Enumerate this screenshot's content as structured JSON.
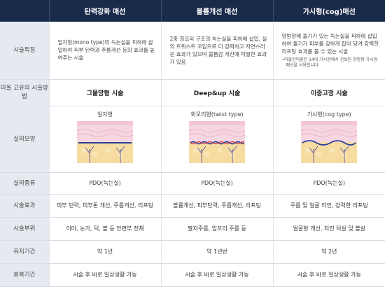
{
  "columns": [
    "",
    "탄력강화 매선",
    "볼륨개선 매선",
    "가시형(cog)매선"
  ],
  "rows": {
    "features": {
      "label": "시술특징",
      "cells": [
        "일자형(mono type)의 녹는실을 피하에 삽입하여 피부 탄력과 주름개선 등의 효과를 높여주는 시술",
        "2중 회오리 구조의 녹는실을 피하에 삽입, 실의 트위스트 꼬임으로 더 강력하고 자연스러운 효과가 있으며 볼륨감 개선에 탁월한 효과가 있음",
        "양방향에 돌기가 있는 녹는실을 피하에 삽입하여 돌기가 피부를 강하게 잡아 당겨 강력한 리프팅 효과를 볼 수 있는 시술"
      ],
      "note": "•미올한의원은 14대 가시형에서 진보된 양방향 가시형 매선을 사용합니다."
    },
    "method": {
      "label": "미올 고유의 시술방법",
      "cells": [
        "그물망형 시술",
        "Deep&up 시술",
        "이중고정 시술"
      ]
    },
    "shape": {
      "label": "실의모양",
      "cells": [
        "일자형",
        "회오리형(twist type)",
        "가시형(cog type)"
      ]
    },
    "thread_type": {
      "label": "실의종류",
      "cells": [
        "PDO(녹는실)",
        "PDO(녹는실)",
        "PDO(녹는실)"
      ]
    },
    "effect": {
      "label": "시술효과",
      "cells": [
        "피부 탄력, 피부톤 개선, 주름개선, 리프팅",
        "볼륨개선, 피부탄력, 주름개선, 리프팅",
        "주름 및 얼굴 라인, 강력한 리프팅"
      ]
    },
    "area": {
      "label": "시술부위",
      "cells": [
        "이마, 눈가, 턱, 볼 등 안면부 전체",
        "팔자주름, 입꼬리 주름 등",
        "얼굴형 개선, 처진 턱살 및 볼살"
      ]
    },
    "duration": {
      "label": "유지기간",
      "cells": [
        "약 1년",
        "약 1년반",
        "약 2년"
      ]
    },
    "recovery": {
      "label": "회복기간",
      "cells": [
        "시술 후 바로 일상생활 가능",
        "시술 후 바로 일상생활 가능",
        "시술 후 바로 일상생활 가능"
      ]
    }
  },
  "colors": {
    "header_bg": "#1a2a4a",
    "label_bg": "#e6eaf0",
    "thread_blue": "#2c3f9c",
    "skin_pink": "#f6d6e2",
    "fat_yellow": "#f6dca0"
  }
}
